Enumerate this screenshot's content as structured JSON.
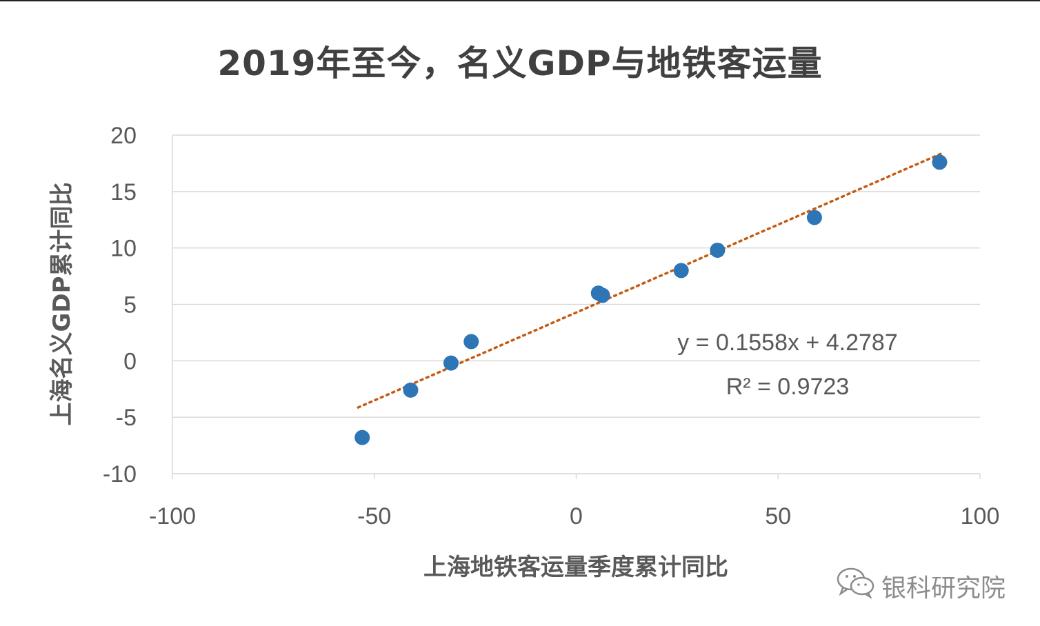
{
  "chart_data": {
    "type": "scatter",
    "title": "2019年至今，名义GDP与地铁客运量",
    "xlabel": "上海地铁客运量季度累计同比",
    "ylabel": "上海名义GDP累计同比",
    "xlim": [
      -100,
      100
    ],
    "ylim": [
      -10,
      20
    ],
    "xticks": [
      "-100",
      "-50",
      "0",
      "50",
      "100"
    ],
    "yticks": [
      "20",
      "15",
      "10",
      "5",
      "0",
      "-5",
      "-10"
    ],
    "grid": true,
    "points": [
      {
        "x": -53,
        "y": -6.8
      },
      {
        "x": -41,
        "y": -2.6
      },
      {
        "x": -31,
        "y": -0.2
      },
      {
        "x": -26,
        "y": 1.7
      },
      {
        "x": 5.5,
        "y": 6.0
      },
      {
        "x": 6.5,
        "y": 5.8
      },
      {
        "x": 26,
        "y": 8.0
      },
      {
        "x": 35,
        "y": 9.8
      },
      {
        "x": 59,
        "y": 12.7
      },
      {
        "x": 90,
        "y": 17.6
      }
    ],
    "trendline": {
      "type": "linear",
      "slope": 0.1558,
      "intercept": 4.2787,
      "x_range": [
        -54,
        91
      ],
      "style": "dotted"
    },
    "annotations": [
      "y = 0.1558x + 4.2787",
      "R² = 0.9723"
    ],
    "colors": {
      "points": "#2e75b6",
      "trendline": "#c55a11",
      "grid": "#d9d9d9",
      "text": "#595959"
    }
  },
  "watermark": {
    "text": "银科研究院",
    "icon": "wechat-logo-icon"
  }
}
